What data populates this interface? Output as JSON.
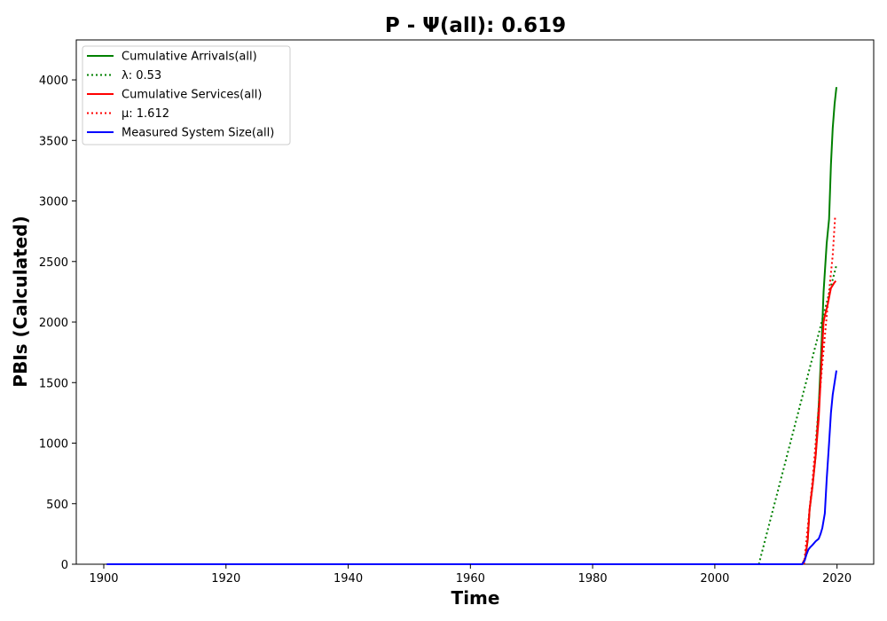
{
  "chart_data": {
    "type": "line",
    "title": "P -  Ψ(all): 0.619",
    "xlabel": "Time",
    "ylabel": "PBIs (Calculated)",
    "xlim": [
      1895.5,
      2026
    ],
    "ylim": [
      0,
      4330
    ],
    "x_ticks": [
      1900,
      1920,
      1940,
      1960,
      1980,
      2000,
      2020
    ],
    "x_tick_labels": [
      "1900",
      "1920",
      "1940",
      "1960",
      "1980",
      "2000",
      "2020"
    ],
    "y_ticks": [
      0,
      500,
      1000,
      1500,
      2000,
      2500,
      3000,
      3500,
      4000
    ],
    "y_tick_labels": [
      "0",
      "500",
      "1000",
      "1500",
      "2000",
      "2500",
      "3000",
      "3500",
      "4000"
    ],
    "grid": false,
    "legend_position": "top-left",
    "series": [
      {
        "name": "Cumulative Arrivals(all)",
        "color": "#008000",
        "style": "solid",
        "x": [
          1900.5,
          2014.3,
          2014.8,
          2015.2,
          2015.5,
          2016.0,
          2016.5,
          2017.0,
          2017.5,
          2017.8,
          2018.3,
          2018.7,
          2019.0,
          2019.3,
          2019.6,
          2019.9
        ],
        "y": [
          0,
          0,
          50,
          200,
          450,
          650,
          900,
          1300,
          1850,
          2250,
          2650,
          2850,
          3300,
          3600,
          3800,
          3940
        ]
      },
      {
        "name": "λ: 0.53",
        "color": "#008000",
        "style": "dotted",
        "x": [
          1900.5,
          2007.2,
          2019.9
        ],
        "y": [
          0,
          0,
          2470
        ]
      },
      {
        "name": "Cumulative Services(all)",
        "color": "#ff0000",
        "style": "solid",
        "x": [
          1900.5,
          2014.3,
          2014.8,
          2015.2,
          2015.5,
          2016.0,
          2016.5,
          2017.0,
          2017.5,
          2017.8,
          2018.0,
          2018.5,
          2019.0,
          2019.5,
          2019.8
        ],
        "y": [
          0,
          0,
          50,
          200,
          450,
          650,
          900,
          1200,
          1700,
          2000,
          2050,
          2150,
          2280,
          2320,
          2340
        ]
      },
      {
        "name": "μ: 1.612",
        "color": "#ff0000",
        "style": "dotted",
        "x": [
          2014.6,
          2016.0,
          2017.5,
          2018.5,
          2019.3,
          2019.7
        ],
        "y": [
          0,
          700,
          1600,
          2150,
          2550,
          2880
        ]
      },
      {
        "name": "Measured System Size(all)",
        "color": "#0000ff",
        "style": "solid",
        "x": [
          1900.5,
          2014.3,
          2014.7,
          2015.0,
          2015.3,
          2015.6,
          2016.0,
          2016.5,
          2017.0,
          2017.3,
          2017.6,
          2018.0,
          2018.3,
          2018.7,
          2019.0,
          2019.3,
          2019.6,
          2019.9
        ],
        "y": [
          0,
          0,
          30,
          80,
          120,
          140,
          160,
          190,
          210,
          250,
          300,
          420,
          700,
          1000,
          1250,
          1400,
          1500,
          1600
        ]
      }
    ]
  }
}
